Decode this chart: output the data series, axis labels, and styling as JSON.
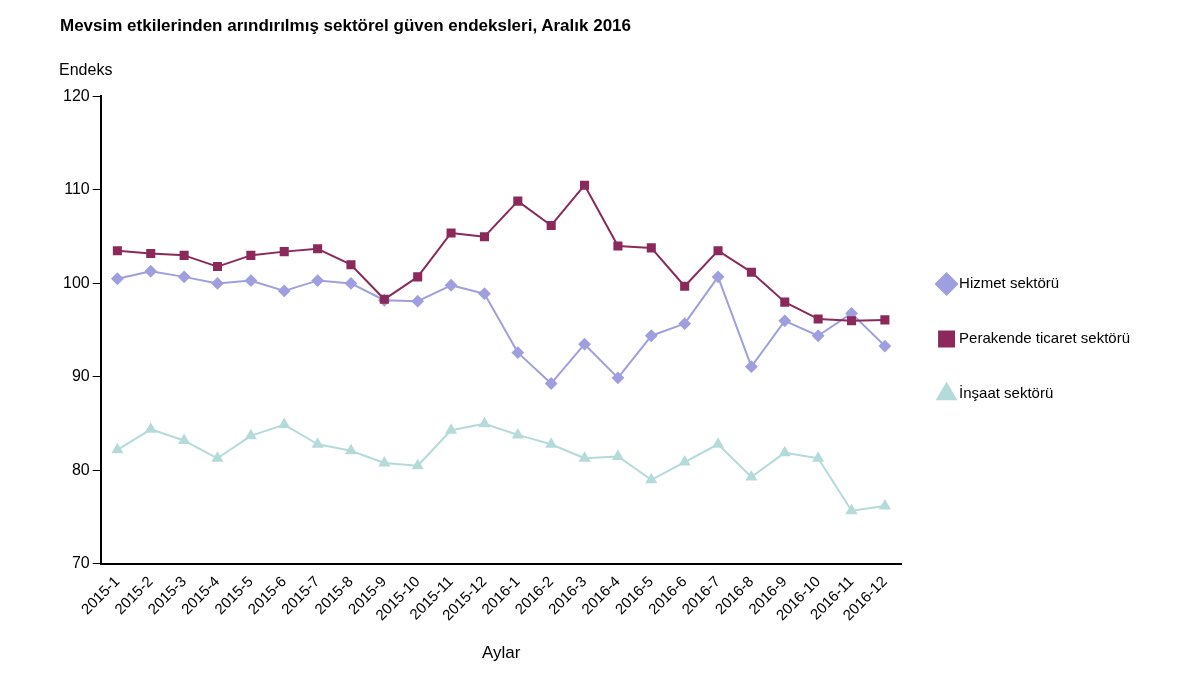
{
  "chart_data": {
    "type": "line",
    "title": "Mevsim etkilerinden arındırılmış sektörel güven endeksleri, Aralık 2016",
    "xlabel": "Aylar",
    "ylabel": "Endeks",
    "categories": [
      "2015-1",
      "2015-2",
      "2015-3",
      "2015-4",
      "2015-5",
      "2015-6",
      "2015-7",
      "2015-8",
      "2015-9",
      "2015-10",
      "2015-11",
      "2015-12",
      "2016-1",
      "2016-2",
      "2016-3",
      "2016-4",
      "2016-5",
      "2016-6",
      "2016-7",
      "2016-8",
      "2016-9",
      "2016-10",
      "2016-11",
      "2016-12"
    ],
    "series": [
      {
        "name": "Hizmet sektörü",
        "color": "#9f9fe0",
        "marker": "diamond",
        "values": [
          100.5,
          101.3,
          100.7,
          100.0,
          100.3,
          99.2,
          100.3,
          100.0,
          98.2,
          98.1,
          99.8,
          98.9,
          92.6,
          89.3,
          93.5,
          89.9,
          94.4,
          95.7,
          100.7,
          91.1,
          96.0,
          94.4,
          96.8,
          93.3
        ]
      },
      {
        "name": "Perakende ticaret sektörü",
        "color": "#8b2a5a",
        "marker": "square",
        "values": [
          103.5,
          103.2,
          103.0,
          101.8,
          103.0,
          103.4,
          103.7,
          102.0,
          98.3,
          100.7,
          105.4,
          105.0,
          108.8,
          106.2,
          110.5,
          104.0,
          103.8,
          99.7,
          103.5,
          101.2,
          98.0,
          96.2,
          96.0,
          96.1
        ]
      },
      {
        "name": "İnşaat sektörü",
        "color": "#b5dada",
        "marker": "triangle",
        "values": [
          82.2,
          84.4,
          83.2,
          81.3,
          83.7,
          84.9,
          82.8,
          82.1,
          80.8,
          80.5,
          84.3,
          85.0,
          83.8,
          82.8,
          81.3,
          81.5,
          79.0,
          80.9,
          82.8,
          79.3,
          81.9,
          81.3,
          75.7,
          76.2
        ]
      }
    ],
    "ylim": [
      70,
      120
    ],
    "yticks": [
      70,
      80,
      90,
      100,
      110,
      120
    ],
    "grid": false,
    "legend": "right"
  }
}
